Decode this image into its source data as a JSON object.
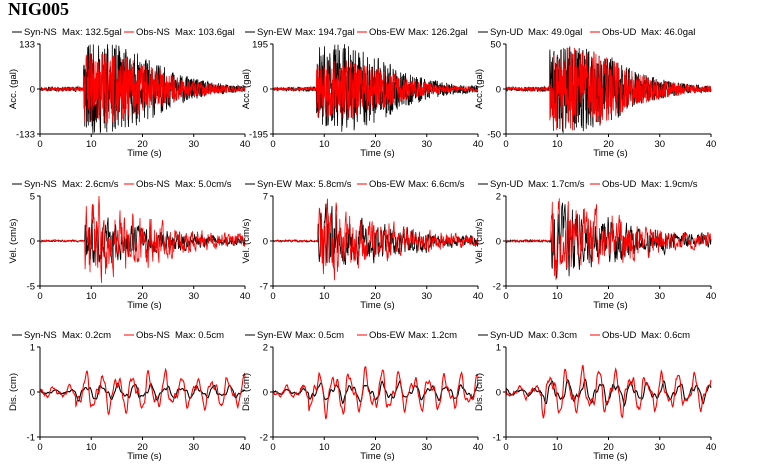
{
  "station": "NIG005",
  "colors": {
    "syn": "#000000",
    "obs": "#ff0000",
    "axis": "#000000"
  },
  "chart_data": [
    {
      "type": "line",
      "row": "acc",
      "col": "NS",
      "ylabel": "Acc. (gal)",
      "xlabel": "Time (s)",
      "ylim": [
        -133,
        133
      ],
      "yticks": [
        -133,
        0,
        133
      ],
      "xlim": [
        0,
        40
      ],
      "xticks": [
        0,
        10,
        20,
        30,
        40
      ],
      "series": [
        {
          "name": "Syn-NS",
          "legend": "Max: 132.5gal",
          "max": 132.5
        },
        {
          "name": "Obs-NS",
          "legend": "Max: 103.6gal",
          "max": 103.6
        }
      ]
    },
    {
      "type": "line",
      "row": "acc",
      "col": "EW",
      "ylabel": "Acc. (gal)",
      "xlabel": "Time (s)",
      "ylim": [
        -195,
        195
      ],
      "yticks": [
        -195,
        0,
        195
      ],
      "xlim": [
        0,
        40
      ],
      "xticks": [
        0,
        10,
        20,
        30,
        40
      ],
      "series": [
        {
          "name": "Syn-EW",
          "legend": "Max: 194.7gal",
          "max": 194.7
        },
        {
          "name": "Obs-EW",
          "legend": "Max: 126.2gal",
          "max": 126.2
        }
      ]
    },
    {
      "type": "line",
      "row": "acc",
      "col": "UD",
      "ylabel": "Acc. (gal)",
      "xlabel": "Time (s)",
      "ylim": [
        -50,
        50
      ],
      "yticks": [
        -50,
        0,
        50
      ],
      "xlim": [
        0,
        40
      ],
      "xticks": [
        0,
        10,
        20,
        30,
        40
      ],
      "series": [
        {
          "name": "Syn-UD",
          "legend": "Max: 49.0gal",
          "max": 49.0
        },
        {
          "name": "Obs-UD",
          "legend": "Max: 46.0gal",
          "max": 46.0
        }
      ]
    },
    {
      "type": "line",
      "row": "vel",
      "col": "NS",
      "ylabel": "Vel. (cm/s)",
      "xlabel": "Time (s)",
      "ylim": [
        -5,
        5
      ],
      "yticks": [
        -5,
        0,
        5
      ],
      "xlim": [
        0,
        40
      ],
      "xticks": [
        0,
        10,
        20,
        30,
        40
      ],
      "series": [
        {
          "name": "Syn-NS",
          "legend": "Max: 2.6cm/s",
          "max": 2.6
        },
        {
          "name": "Obs-NS",
          "legend": "Max: 5.0cm/s",
          "max": 5.0
        }
      ]
    },
    {
      "type": "line",
      "row": "vel",
      "col": "EW",
      "ylabel": "Vel. (cm/s)",
      "xlabel": "Time (s)",
      "ylim": [
        -7,
        7
      ],
      "yticks": [
        -7,
        0,
        7
      ],
      "xlim": [
        0,
        40
      ],
      "xticks": [
        0,
        10,
        20,
        30,
        40
      ],
      "series": [
        {
          "name": "Syn-EW",
          "legend": "Max: 5.8cm/s",
          "max": 5.8
        },
        {
          "name": "Obs-EW",
          "legend": "Max: 6.6cm/s",
          "max": 6.6
        }
      ]
    },
    {
      "type": "line",
      "row": "vel",
      "col": "UD",
      "ylabel": "Vel. (cm/s)",
      "xlabel": "Time (s)",
      "ylim": [
        -2,
        2
      ],
      "yticks": [
        -2,
        0,
        2
      ],
      "xlim": [
        0,
        40
      ],
      "xticks": [
        0,
        10,
        20,
        30,
        40
      ],
      "series": [
        {
          "name": "Syn-UD",
          "legend": "Max: 1.7cm/s",
          "max": 1.7
        },
        {
          "name": "Obs-UD",
          "legend": "Max: 1.9cm/s",
          "max": 1.9
        }
      ]
    },
    {
      "type": "line",
      "row": "dis",
      "col": "NS",
      "ylabel": "Dis. (cm)",
      "xlabel": "Time (s)",
      "ylim": [
        -1,
        1
      ],
      "yticks": [
        -1,
        0,
        1
      ],
      "xlim": [
        0,
        40
      ],
      "xticks": [
        0,
        10,
        20,
        30,
        40
      ],
      "series": [
        {
          "name": "Syn-NS",
          "legend": "Max: 0.2cm",
          "max": 0.2
        },
        {
          "name": "Obs-NS",
          "legend": "Max: 0.5cm",
          "max": 0.5
        }
      ]
    },
    {
      "type": "line",
      "row": "dis",
      "col": "EW",
      "ylabel": "Dis. (cm)",
      "xlabel": "Time (s)",
      "ylim": [
        -2,
        2
      ],
      "yticks": [
        -2,
        0,
        2
      ],
      "xlim": [
        0,
        40
      ],
      "xticks": [
        0,
        10,
        20,
        30,
        40
      ],
      "series": [
        {
          "name": "Syn-EW",
          "legend": "Max: 0.5cm",
          "max": 0.5
        },
        {
          "name": "Obs-EW",
          "legend": "Max: 1.2cm",
          "max": 1.2
        }
      ]
    },
    {
      "type": "line",
      "row": "dis",
      "col": "UD",
      "ylabel": "Dis. (cm)",
      "xlabel": "Time (s)",
      "ylim": [
        -1,
        1
      ],
      "yticks": [
        -1,
        0,
        1
      ],
      "xlim": [
        0,
        40
      ],
      "xticks": [
        0,
        10,
        20,
        30,
        40
      ],
      "series": [
        {
          "name": "Syn-UD",
          "legend": "Max: 0.3cm",
          "max": 0.3
        },
        {
          "name": "Obs-UD",
          "legend": "Max: 0.6cm",
          "max": 0.6
        }
      ]
    }
  ]
}
